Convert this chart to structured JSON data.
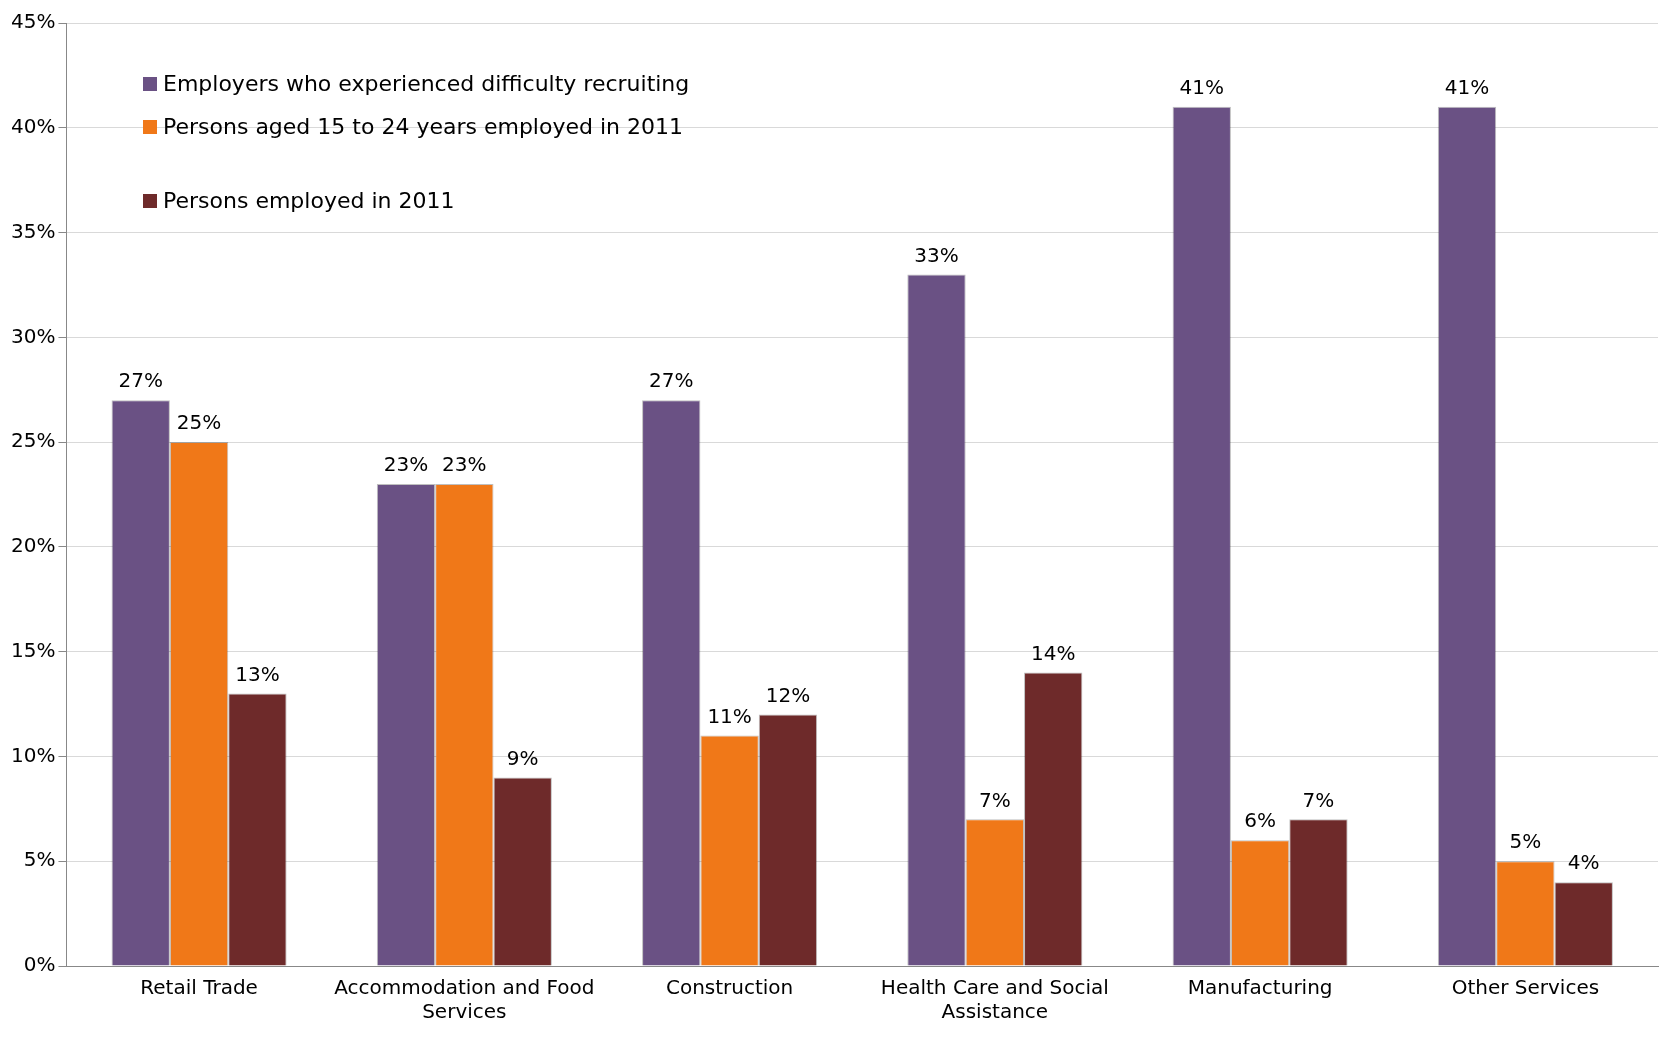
{
  "chart_data": {
    "type": "bar",
    "categories": [
      "Retail Trade",
      "Accommodation and Food Services",
      "Construction",
      "Health Care and Social Assistance",
      "Manufacturing",
      "Other Services"
    ],
    "series": [
      {
        "name": "Employers who experienced difficulty recruiting",
        "color": "#6a5184",
        "values": [
          27,
          23,
          27,
          33,
          41,
          41
        ],
        "value_labels": [
          "27%",
          "23%",
          "27%",
          "33%",
          "41%",
          "41%"
        ]
      },
      {
        "name": "Persons aged 15 to 24 years employed in 2011",
        "color": "#f07818",
        "values": [
          25,
          23,
          11,
          7,
          6,
          5
        ],
        "value_labels": [
          "25%",
          "23%",
          "11%",
          "7%",
          "6%",
          "5%"
        ]
      },
      {
        "name": "Persons employed in 2011",
        "color": "#6e2a2a",
        "values": [
          13,
          9,
          12,
          14,
          7,
          4
        ],
        "value_labels": [
          "13%",
          "9%",
          "12%",
          "14%",
          "7%",
          "4%"
        ]
      }
    ],
    "ylim": [
      0,
      45
    ],
    "yticks": [
      {
        "value": 0,
        "label": "0%"
      },
      {
        "value": 5,
        "label": "5%"
      },
      {
        "value": 10,
        "label": "10%"
      },
      {
        "value": 15,
        "label": "15%"
      },
      {
        "value": 20,
        "label": "20%"
      },
      {
        "value": 25,
        "label": "25%"
      },
      {
        "value": 30,
        "label": "30%"
      },
      {
        "value": 35,
        "label": "35%"
      },
      {
        "value": 40,
        "label": "40%"
      },
      {
        "value": 45,
        "label": "45%"
      }
    ],
    "grid": "y",
    "legend": "top left"
  }
}
